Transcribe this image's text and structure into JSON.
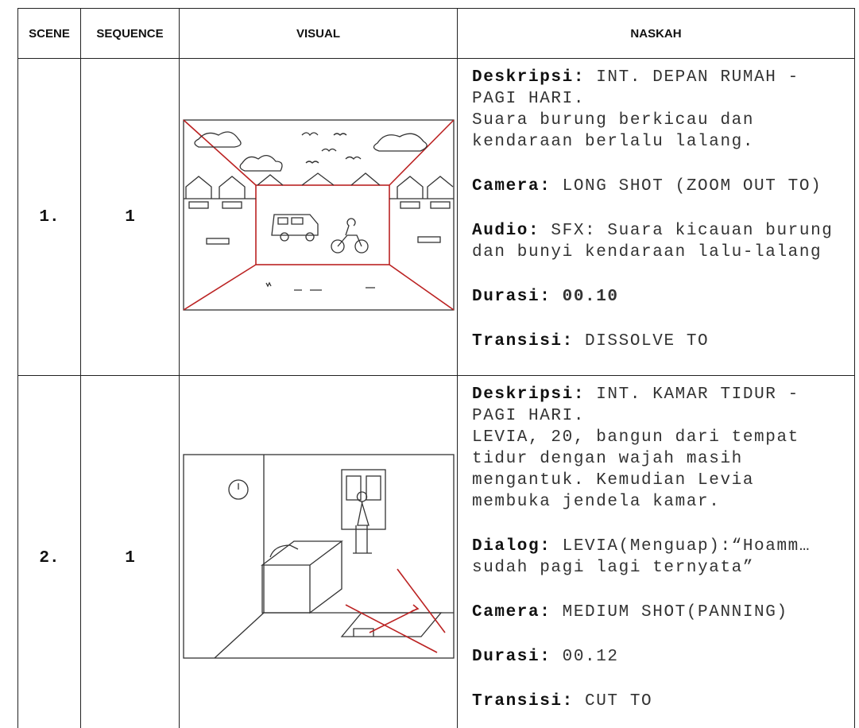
{
  "header": [
    "SCENE",
    "SEQUENCE",
    "VISUAL",
    "NASKAH"
  ],
  "rows": [
    {
      "scene": "1.",
      "sequence": "1",
      "naskah": [
        {
          "label": "Deskripsi:",
          "lines": [
            "INT. DEPAN RUMAH -",
            "PAGI HARI.",
            "Suara burung berkicau dan",
            "kendaraan berlalu lalang."
          ]
        },
        {
          "label": "Camera:",
          "lines": [
            "LONG SHOT (ZOOM OUT TO)"
          ]
        },
        {
          "label": "Audio:",
          "lines": [
            "SFX: Suara kicauan burung",
            "dan bunyi kendaraan lalu-lalang"
          ]
        },
        {
          "label": "Durasi:",
          "lines": [
            "00.10"
          ]
        },
        {
          "label": "Transisi:",
          "lines": [
            "DISSOLVE TO"
          ]
        }
      ]
    },
    {
      "scene": "2.",
      "sequence": "1",
      "naskah": [
        {
          "label": "Deskripsi:",
          "lines": [
            "INT. KAMAR TIDUR -",
            "PAGI HARI.",
            "LEVIA, 20, bangun dari tempat",
            "tidur dengan wajah masih",
            "mengantuk. Kemudian Levia",
            "membuka jendela kamar."
          ]
        },
        {
          "label": "Dialog:",
          "lines": [
            "LEVIA(Menguap):“Hoamm…",
            "sudah pagi lagi ternyata”"
          ]
        },
        {
          "label": "Camera:",
          "lines": [
            "MEDIUM SHOT(PANNING)"
          ]
        },
        {
          "label": "Durasi:",
          "lines": [
            "00.12"
          ]
        },
        {
          "label": "Transisi:",
          "lines": [
            "CUT TO"
          ]
        }
      ]
    }
  ]
}
